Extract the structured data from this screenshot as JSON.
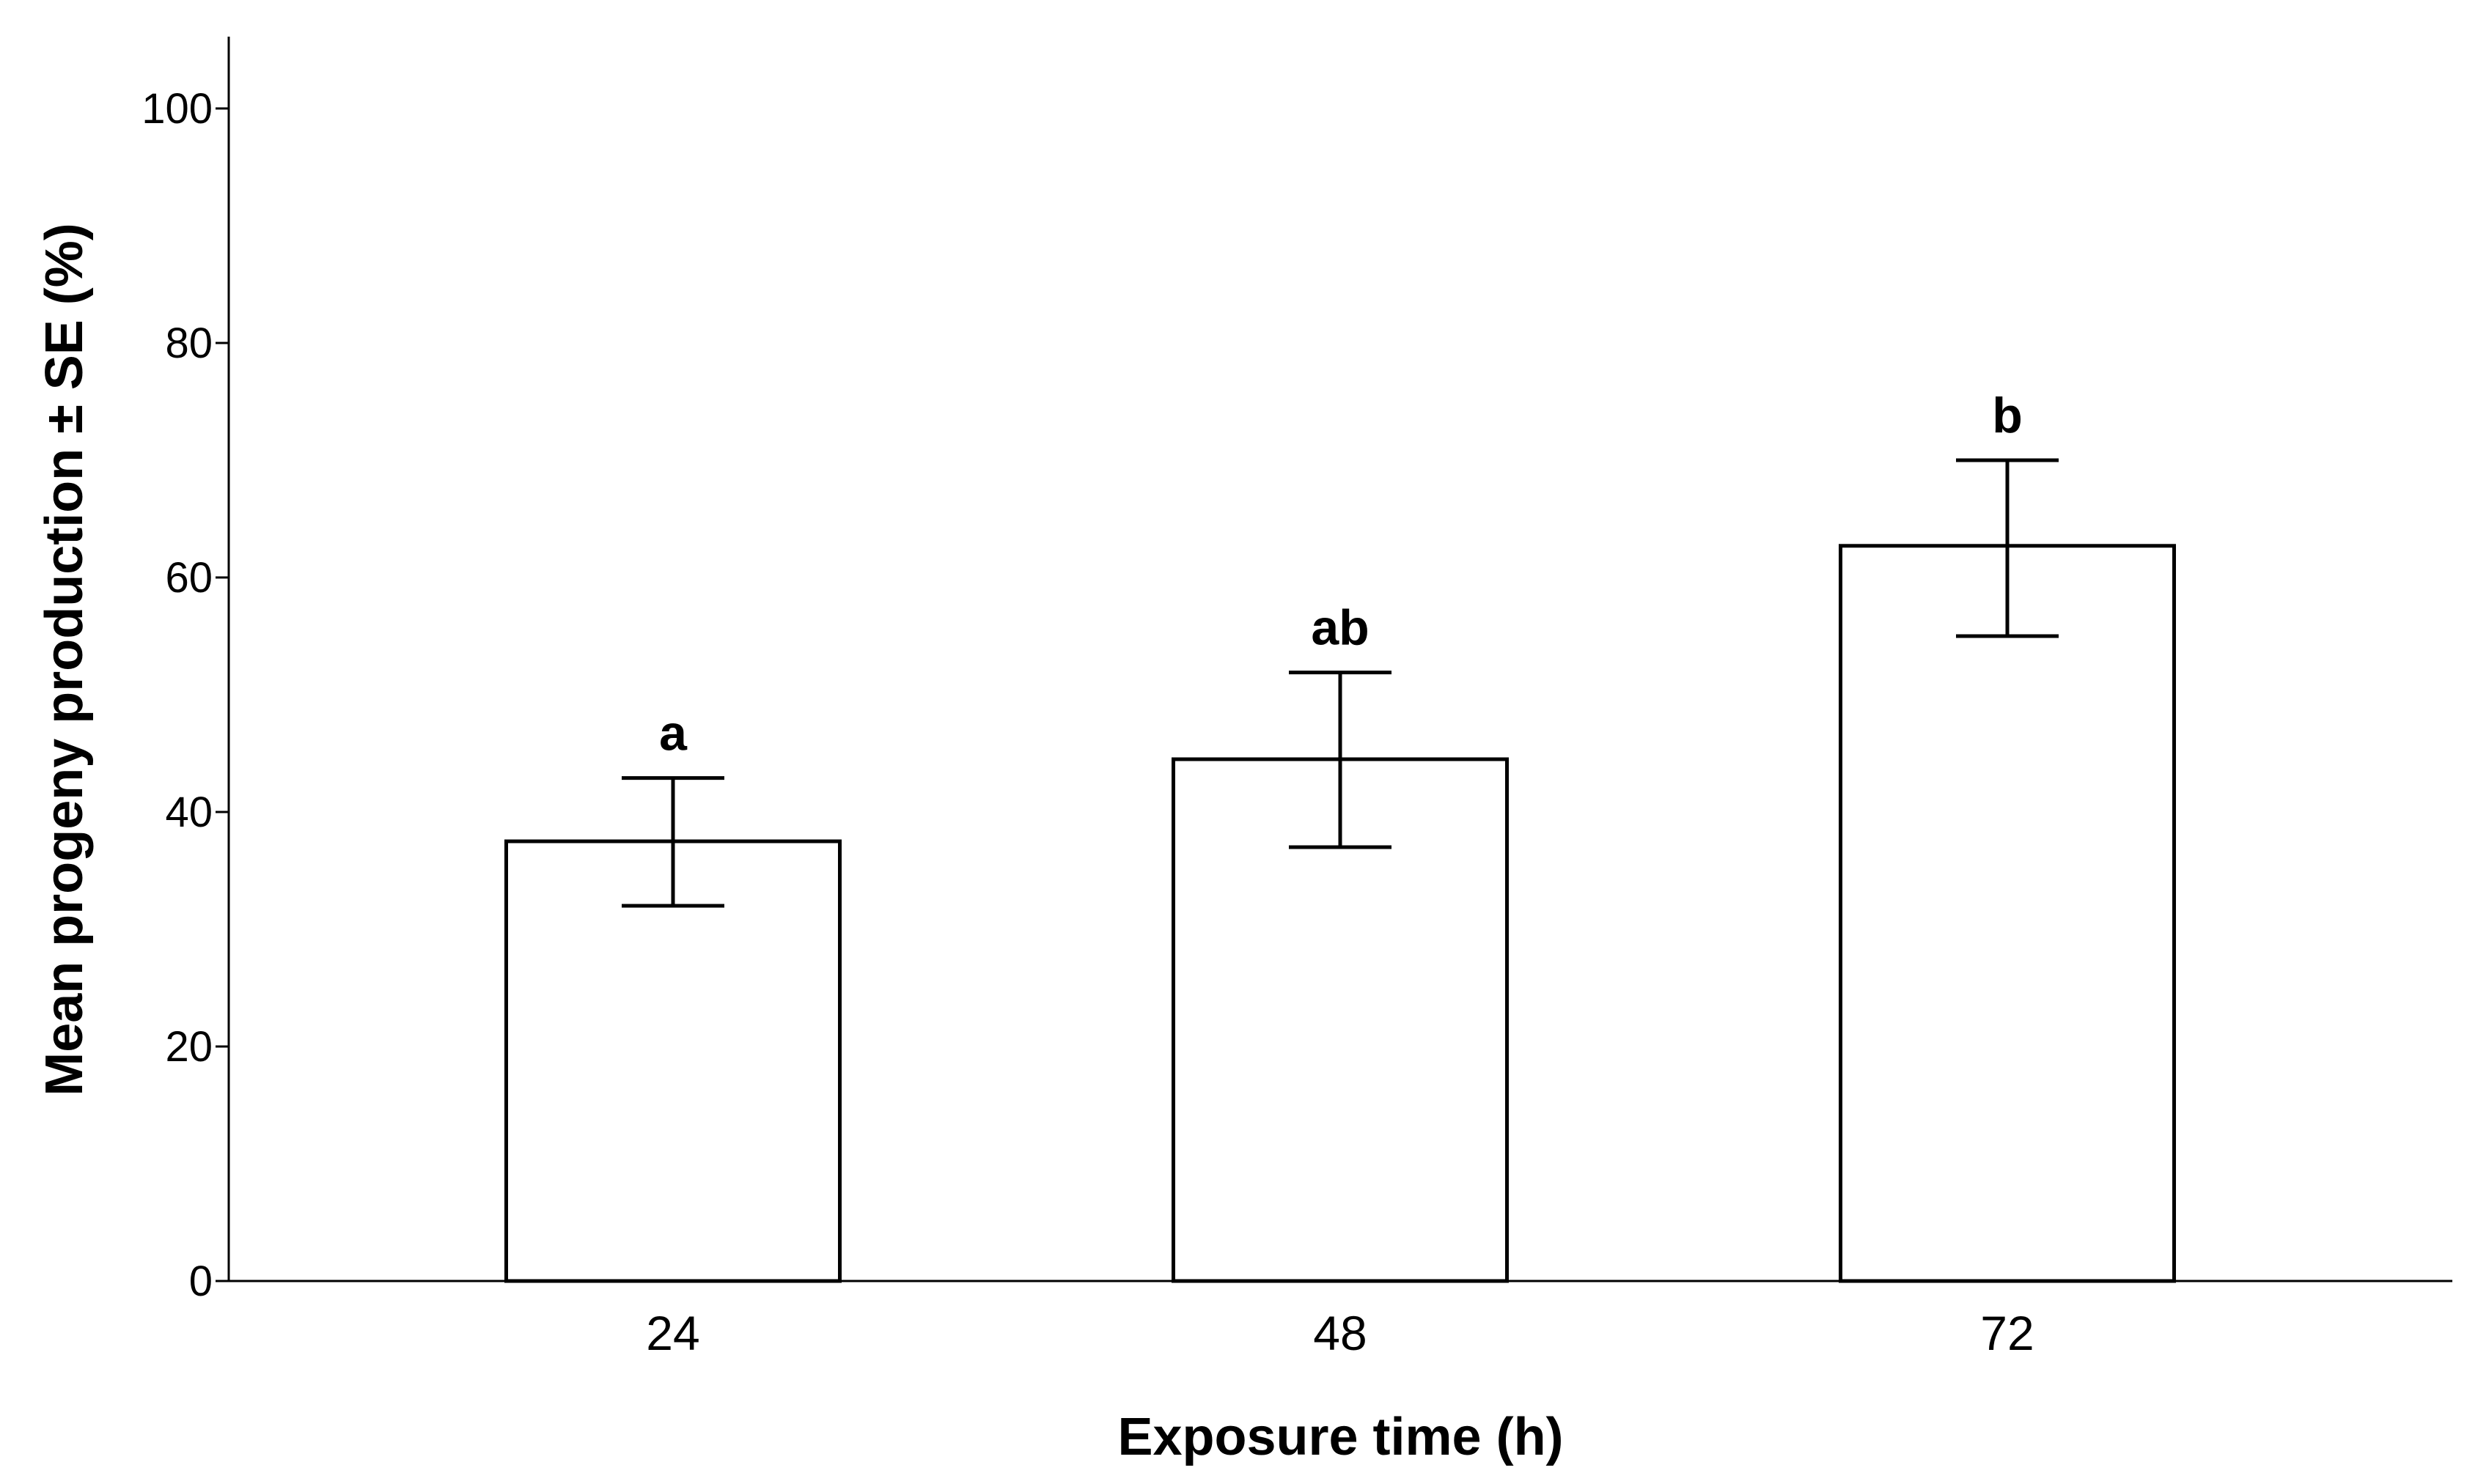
{
  "chart_data": {
    "type": "bar",
    "categories": [
      "24",
      "48",
      "72"
    ],
    "values": [
      37.5,
      44.5,
      62.7
    ],
    "error_bars": {
      "lower": [
        32.0,
        37.0,
        55.0
      ],
      "upper": [
        42.9,
        51.9,
        70.0
      ]
    },
    "significance_labels": [
      "a",
      "ab",
      "b"
    ],
    "xlabel": "Exposure time (h)",
    "ylabel": "Mean progeny production ± SE (%)",
    "ylim": [
      0,
      105
    ],
    "yticks": [
      "0",
      "20",
      "40",
      "60",
      "80",
      "100"
    ],
    "grid": false,
    "legend": "none",
    "colors": {
      "bar_fill": "#ffffff",
      "bar_edge": "#000000"
    }
  }
}
